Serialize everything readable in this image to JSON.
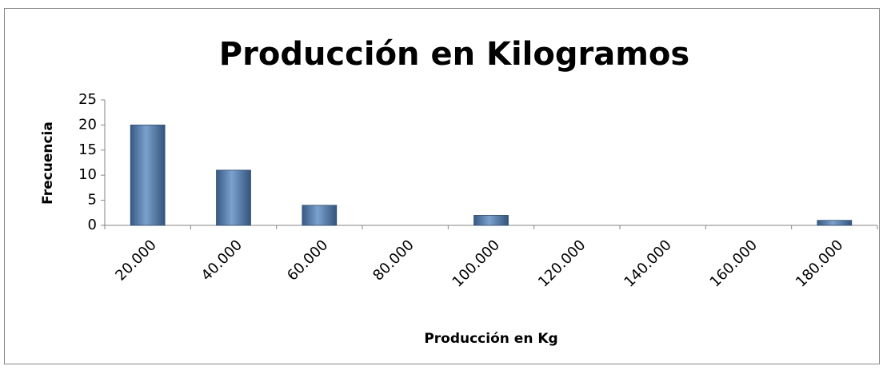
{
  "chart_data": {
    "type": "bar",
    "title": "Producción en Kilogramos",
    "x_label": "Producción en Kg",
    "y_label": "Frecuencia",
    "categories": [
      "20.000",
      "40.000",
      "60.000",
      "80.000",
      "100.000",
      "120.000",
      "140.000",
      "160.000",
      "180.000"
    ],
    "values": [
      20,
      11,
      4,
      0,
      2,
      0,
      0,
      0,
      1
    ],
    "color": "#4f81bd",
    "ylim": [
      0,
      25
    ],
    "yticks": [
      0,
      5,
      10,
      15,
      20,
      25
    ],
    "grid": false
  }
}
